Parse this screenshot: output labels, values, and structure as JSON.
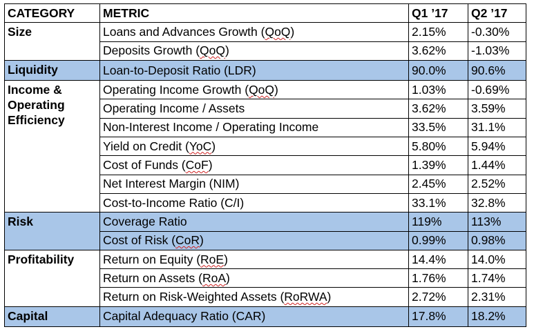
{
  "headers": [
    "CATEGORY",
    "METRIC",
    "Q1 ’17",
    "Q2 ’17"
  ],
  "groups": [
    {
      "category": "Size",
      "rows": [
        {
          "pre": "Loans and Advances Growth (",
          "abbr": "QoQ",
          "post": ")",
          "q1": "2.15%",
          "q2": "-0.30%"
        },
        {
          "pre": "Deposits Growth (",
          "abbr": "QoQ",
          "post": ")",
          "q1": "3.62%",
          "q2": "-1.03%"
        }
      ]
    },
    {
      "category": "Liquidity",
      "rows": [
        {
          "pre": "Loan-to-Deposit Ratio (LDR)",
          "abbr": "",
          "post": "",
          "q1": "90.0%",
          "q2": "90.6%"
        }
      ]
    },
    {
      "category": "Income & Operating Efficiency",
      "rows": [
        {
          "pre": "Operating Income Growth (",
          "abbr": "QoQ",
          "post": ")",
          "q1": "1.03%",
          "q2": "-0.69%"
        },
        {
          "pre": "Operating Income / Assets",
          "abbr": "",
          "post": "",
          "q1": "3.62%",
          "q2": "3.59%"
        },
        {
          "pre": "Non-Interest Income / Operating Income",
          "abbr": "",
          "post": "",
          "q1": "33.5%",
          "q2": "31.1%"
        },
        {
          "pre": "Yield on Credit (",
          "abbr": "YoC",
          "post": ")",
          "q1": "5.80%",
          "q2": "5.94%"
        },
        {
          "pre": "Cost of Funds (",
          "abbr": "CoF",
          "post": ")",
          "q1": "1.39%",
          "q2": "1.44%"
        },
        {
          "pre": "Net Interest Margin (NIM)",
          "abbr": "",
          "post": "",
          "q1": "2.45%",
          "q2": "2.52%"
        },
        {
          "pre": "Cost-to-Income Ratio (C/I)",
          "abbr": "",
          "post": "",
          "q1": "33.1%",
          "q2": "32.8%"
        }
      ]
    },
    {
      "category": "Risk",
      "rows": [
        {
          "pre": "Coverage Ratio",
          "abbr": "",
          "post": "",
          "q1": "119%",
          "q2": "113%"
        },
        {
          "pre": "Cost of Risk (",
          "abbr": "CoR",
          "post": ")",
          "q1": "0.99%",
          "q2": "0.98%"
        }
      ]
    },
    {
      "category": "Profitability",
      "rows": [
        {
          "pre": "Return on Equity (",
          "abbr": "RoE",
          "post": ")",
          "q1": "14.4%",
          "q2": "14.0%"
        },
        {
          "pre": "Return on Assets (",
          "abbr": "RoA",
          "post": ")",
          "q1": "1.76%",
          "q2": "1.74%"
        },
        {
          "pre": "Return on Risk-Weighted Assets (",
          "abbr": "RoRWA",
          "post": ")",
          "q1": "2.72%",
          "q2": "2.31%"
        }
      ]
    },
    {
      "category": "Capital",
      "rows": [
        {
          "pre": "Capital Adequacy Ratio (CAR)",
          "abbr": "",
          "post": "",
          "q1": "17.8%",
          "q2": "18.2%"
        }
      ]
    }
  ],
  "colors": {
    "highlight": "#a9c6e8",
    "border": "#000000",
    "spellcheck": "#d02020"
  }
}
